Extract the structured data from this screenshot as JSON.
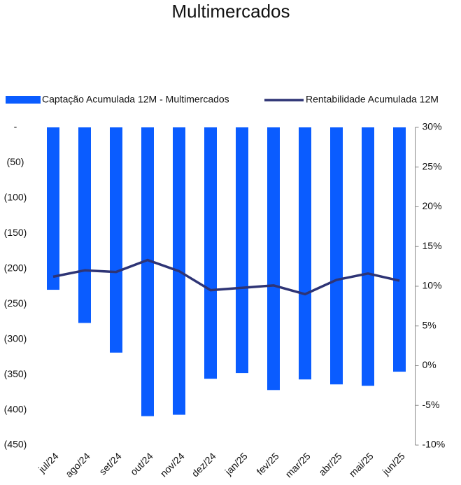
{
  "chart_data": {
    "type": "bar-line",
    "title": "Multimercados",
    "categories": [
      "jul/24",
      "ago/24",
      "set/24",
      "out/24",
      "nov/24",
      "dez/24",
      "jan/25",
      "fev/25",
      "mar/25",
      "abr/25",
      "mai/25",
      "jun/25"
    ],
    "series": [
      {
        "name": "Captação Acumulada 12M - Multimercados",
        "type": "bar",
        "color": "#0a5cff",
        "axis": "y",
        "values": [
          -230,
          -277,
          -319,
          -409,
          -407,
          -356,
          -348,
          -372,
          -357,
          -364,
          -366,
          -346
        ]
      },
      {
        "name": "Rentabilidade Acumulada 12M",
        "type": "line",
        "color": "#2e3475",
        "axis": "y2",
        "values": [
          11.2,
          12.0,
          11.8,
          13.3,
          11.9,
          9.5,
          9.8,
          10.1,
          9.0,
          10.8,
          11.6,
          10.7
        ]
      }
    ],
    "ylim": [
      -450,
      0
    ],
    "yticks": [
      {
        "value": 0,
        "label": "-"
      },
      {
        "value": -50,
        "label": "(50)"
      },
      {
        "value": -100,
        "label": "(100)"
      },
      {
        "value": -150,
        "label": "(150)"
      },
      {
        "value": -200,
        "label": "(200)"
      },
      {
        "value": -250,
        "label": "(250)"
      },
      {
        "value": -300,
        "label": "(300)"
      },
      {
        "value": -350,
        "label": "(350)"
      },
      {
        "value": -400,
        "label": "(400)"
      },
      {
        "value": -450,
        "label": "(450)"
      }
    ],
    "y2lim": [
      -10,
      30
    ],
    "y2ticks": [
      {
        "value": 30,
        "label": "30%"
      },
      {
        "value": 25,
        "label": "25%"
      },
      {
        "value": 20,
        "label": "20%"
      },
      {
        "value": 15,
        "label": "15%"
      },
      {
        "value": 10,
        "label": "10%"
      },
      {
        "value": 5,
        "label": "5%"
      },
      {
        "value": 0,
        "label": "0%"
      },
      {
        "value": -5,
        "label": "-5%"
      },
      {
        "value": -10,
        "label": "-10%"
      }
    ]
  }
}
